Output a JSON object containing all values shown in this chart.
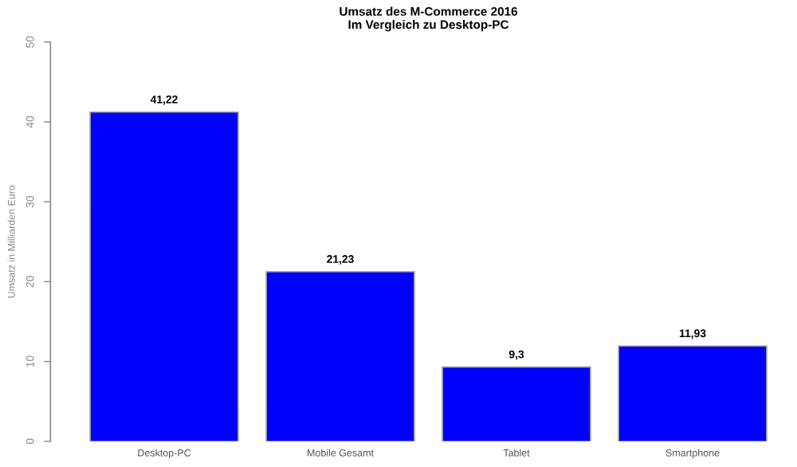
{
  "chart_data": {
    "type": "bar",
    "title": "Umsatz des M-Commerce 2016\nIm Vergleich zu Desktop-PC",
    "ylabel": "Umsatz in Milliarden Euro",
    "categories": [
      "Desktop-PC",
      "Mobile Gesamt",
      "Tablet",
      "Smartphone"
    ],
    "values": [
      41.22,
      21.23,
      9.3,
      11.93
    ],
    "value_labels": [
      "41,22",
      "21,23",
      "9,3",
      "11,93"
    ],
    "color": "#0000ff",
    "ylim": [
      0,
      50
    ],
    "yticks": [
      0,
      10,
      20,
      30,
      40,
      50
    ],
    "grid": false,
    "legend": false
  }
}
